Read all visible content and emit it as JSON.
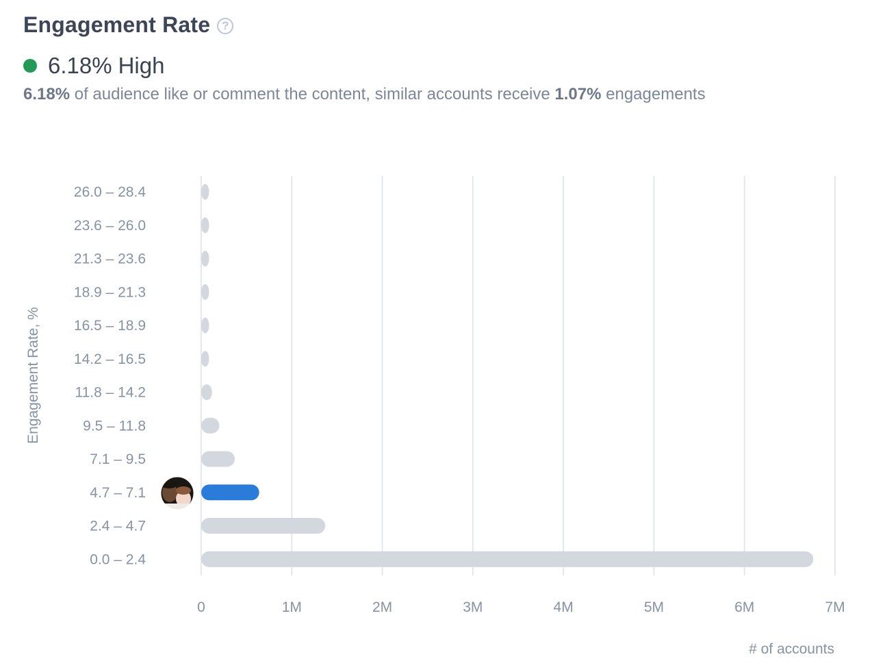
{
  "header": {
    "title": "Engagement Rate",
    "help_icon": "question-circle-icon"
  },
  "status": {
    "value": "6.18%",
    "label": "High",
    "color": "#239b57"
  },
  "summary": {
    "value": "6.18%",
    "text_middle": " of audience like or comment the content, similar accounts receive ",
    "benchmark": "1.07%",
    "text_end": " engagements"
  },
  "chart_data": {
    "type": "bar",
    "orientation": "horizontal",
    "categories": [
      "26.0 – 28.4",
      "23.6 – 26.0",
      "21.3 – 23.6",
      "18.9 – 21.3",
      "16.5 – 18.9",
      "14.2 – 16.5",
      "11.8 – 14.2",
      "9.5 – 11.8",
      "7.1 – 9.5",
      "4.7 – 7.1",
      "2.4 – 4.7",
      "0.0 – 2.4"
    ],
    "values": [
      50000,
      50000,
      50000,
      50000,
      50000,
      70000,
      120000,
      200000,
      370000,
      640000,
      1370000,
      6760000
    ],
    "highlight_index": 9,
    "highlight_marker": "avatar",
    "ylabel": "Engagement Rate, %",
    "xlabel": "# of accounts",
    "xlim": [
      0,
      7000000
    ],
    "x_ticks": [
      {
        "value": 0,
        "label": "0"
      },
      {
        "value": 1000000,
        "label": "1M"
      },
      {
        "value": 2000000,
        "label": "2M"
      },
      {
        "value": 3000000,
        "label": "3M"
      },
      {
        "value": 4000000,
        "label": "4M"
      },
      {
        "value": 5000000,
        "label": "5M"
      },
      {
        "value": 6000000,
        "label": "6M"
      },
      {
        "value": 7000000,
        "label": "7M"
      }
    ],
    "grid": true,
    "colors": {
      "bar": "#d2d8de",
      "highlight": "#2b7bd9",
      "grid": "#e3e7ec"
    }
  }
}
